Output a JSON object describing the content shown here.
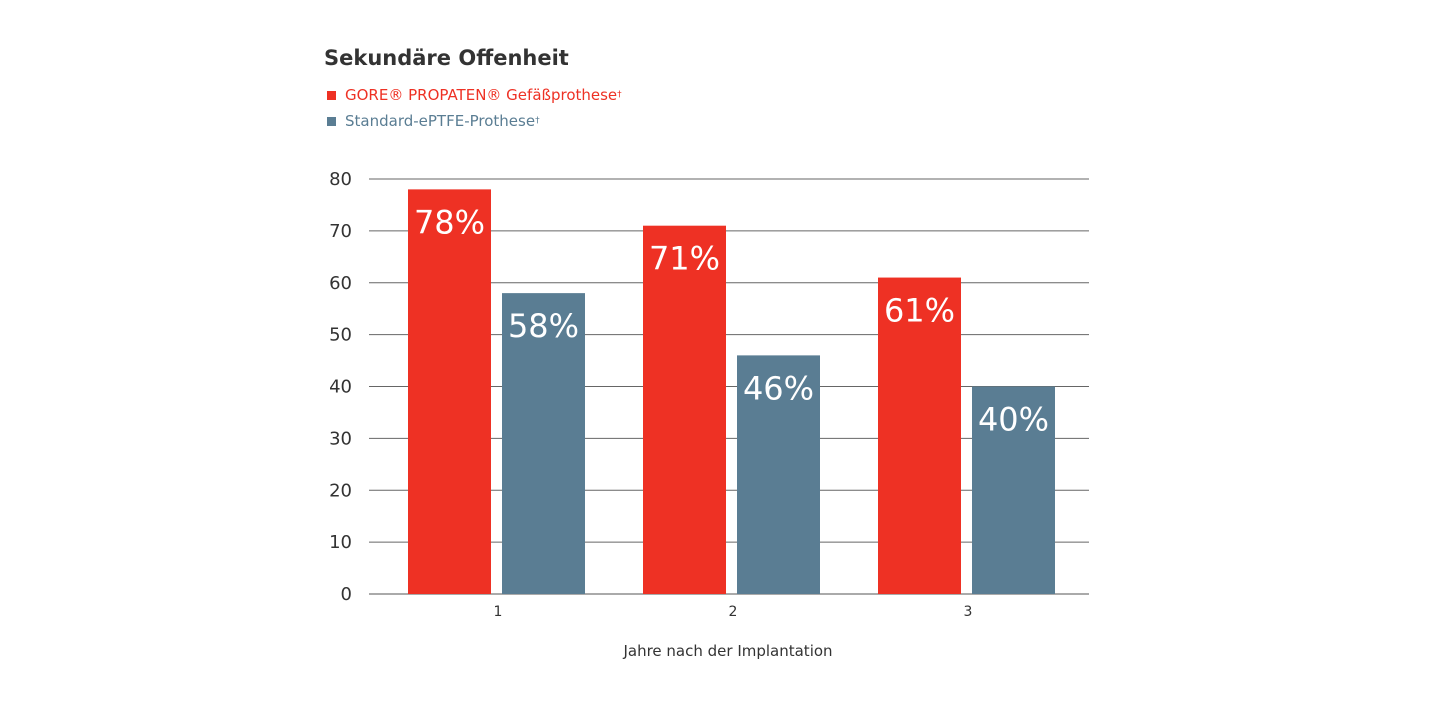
{
  "chart_data": {
    "type": "bar",
    "title": "Sekundäre Offenheit",
    "xlabel": "Jahre nach der Implantation",
    "ylabel": "",
    "categories": [
      "1",
      "2",
      "3"
    ],
    "ylim": [
      0,
      80
    ],
    "yticks": [
      0,
      10,
      20,
      30,
      40,
      50,
      60,
      70,
      80
    ],
    "grid": true,
    "legend_position": "top-left",
    "series": [
      {
        "name": "GORE® PROPATEN® Gefäßprothese",
        "name_mark": "†",
        "color": "#ee3124",
        "values": [
          78,
          71,
          61
        ],
        "labels": [
          "78%",
          "71%",
          "61%"
        ]
      },
      {
        "name": "Standard-ePTFE-Prothese",
        "name_mark": "†",
        "color": "#5a7d93",
        "values": [
          58,
          46,
          40
        ],
        "labels": [
          "58%",
          "46%",
          "40%"
        ]
      }
    ]
  }
}
